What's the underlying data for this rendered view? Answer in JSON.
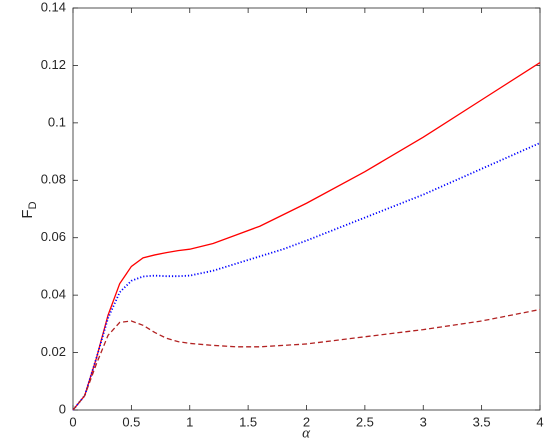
{
  "chart_data": {
    "type": "line",
    "xlabel": "α",
    "ylabel": "F",
    "ylabel_subscript": "D",
    "x": [
      0,
      0.1,
      0.2,
      0.3,
      0.4,
      0.5,
      0.6,
      0.7,
      0.8,
      0.9,
      1.0,
      1.2,
      1.4,
      1.6,
      1.8,
      2.0,
      2.5,
      3.0,
      3.5,
      4.0
    ],
    "series": [
      {
        "color": "#ff0000",
        "linestyle": "solid",
        "values": [
          0,
          0.005,
          0.018,
          0.033,
          0.044,
          0.05,
          0.053,
          0.054,
          0.0548,
          0.0555,
          0.056,
          0.058,
          0.061,
          0.064,
          0.068,
          0.072,
          0.083,
          0.095,
          0.108,
          0.121
        ]
      },
      {
        "color": "#0000ff",
        "linestyle": "dotted",
        "values": [
          0,
          0.005,
          0.018,
          0.032,
          0.041,
          0.045,
          0.0465,
          0.0468,
          0.0466,
          0.0466,
          0.0468,
          0.0485,
          0.051,
          0.0535,
          0.056,
          0.059,
          0.067,
          0.075,
          0.084,
          0.093
        ]
      },
      {
        "color": "#b22222",
        "linestyle": "dashed",
        "values": [
          0,
          0.005,
          0.016,
          0.026,
          0.0305,
          0.031,
          0.0295,
          0.027,
          0.025,
          0.0238,
          0.0232,
          0.0225,
          0.022,
          0.022,
          0.0225,
          0.023,
          0.0255,
          0.028,
          0.031,
          0.035
        ]
      }
    ],
    "xlim": [
      0,
      4
    ],
    "xticks": [
      0,
      0.5,
      1,
      1.5,
      2,
      2.5,
      3,
      3.5,
      4
    ],
    "ylim": [
      0,
      0.14
    ],
    "yticks": [
      0,
      0.02,
      0.04,
      0.06,
      0.08,
      0.1,
      0.12,
      0.14
    ],
    "grid": false
  }
}
